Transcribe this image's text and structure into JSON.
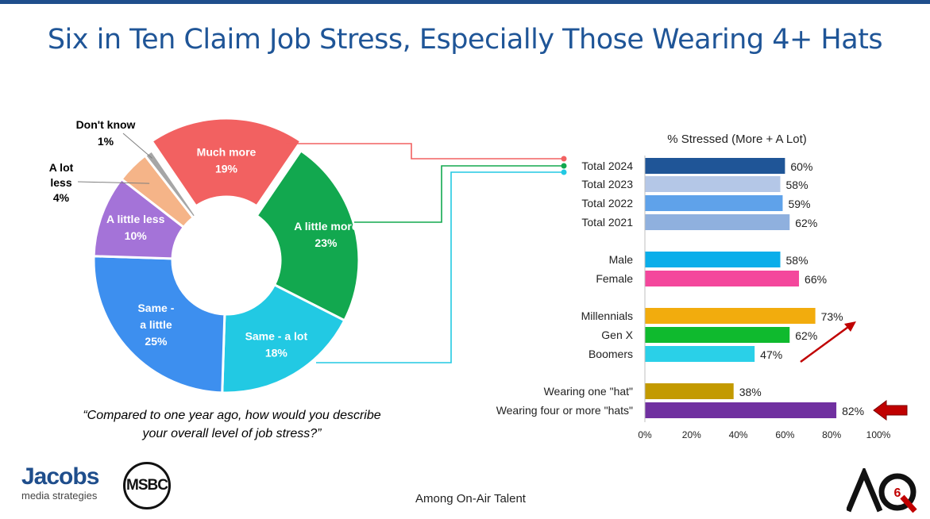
{
  "title": "Six in Ten Claim Job Stress, Especially Those Wearing 4+ Hats",
  "question": "“Compared to one year ago, how would you describe your overall level of job stress?”",
  "base_note": "Among On-Air Talent",
  "logos": {
    "jacobs_name": "Jacobs",
    "jacobs_sub": "media strategies",
    "msbc": "MSBC",
    "aq": "AQ",
    "aq_sub": "6"
  },
  "chart_data": [
    {
      "type": "pie",
      "style": "donut",
      "slices": [
        {
          "label": "Much more",
          "value": 19,
          "color": "#f26161"
        },
        {
          "label": "A little more",
          "value": 23,
          "color": "#12a84f"
        },
        {
          "label": "Same - a lot",
          "value": 18,
          "color": "#22c9e3"
        },
        {
          "label": "Same - a little",
          "value": 25,
          "color": "#3d8fef"
        },
        {
          "label": "A little less",
          "value": 10,
          "color": "#a473d8"
        },
        {
          "label": "A lot less",
          "value": 4,
          "color": "#f5b488"
        },
        {
          "label": "Don't know",
          "value": 1,
          "color": "#a6a6a6"
        }
      ],
      "labels_shown": {
        "much_more": [
          "Much more",
          "19%"
        ],
        "a_little_more": [
          "A little more",
          "23%"
        ],
        "same_a_lot": [
          "Same - a lot",
          "18%"
        ],
        "same_a_little": [
          "Same -",
          "a little",
          "25%"
        ],
        "a_little_less": [
          "A little less",
          "10%"
        ],
        "a_lot_less": [
          "A lot",
          "less",
          "4%"
        ],
        "dont_know": [
          "Don't know",
          "1%"
        ]
      }
    },
    {
      "type": "bar",
      "orientation": "horizontal",
      "title": "% Stressed (More + A Lot)",
      "xlim": [
        0,
        100
      ],
      "xticks": [
        "0%",
        "20%",
        "40%",
        "60%",
        "80%",
        "100%"
      ],
      "groups": [
        [
          {
            "label": "Total 2024",
            "value": 60,
            "display": "60%",
            "color": "#1f5597"
          },
          {
            "label": "Total 2023",
            "value": 58,
            "display": "58%",
            "color": "#b4c7e7"
          },
          {
            "label": "Total 2022",
            "value": 59,
            "display": "59%",
            "color": "#5fa2ea"
          },
          {
            "label": "Total 2021",
            "value": 62,
            "display": "62%",
            "color": "#8fb0de"
          }
        ],
        [
          {
            "label": "Male",
            "value": 58,
            "display": "58%",
            "color": "#0aaeea"
          },
          {
            "label": "Female",
            "value": 66,
            "display": "66%",
            "color": "#f4479c"
          }
        ],
        [
          {
            "label": "Millennials",
            "value": 73,
            "display": "73%",
            "color": "#f2ac0d"
          },
          {
            "label": "Gen X",
            "value": 62,
            "display": "62%",
            "color": "#0fba2e"
          },
          {
            "label": "Boomers",
            "value": 47,
            "display": "47%",
            "color": "#2ad0e8"
          }
        ],
        [
          {
            "label": "Wearing one \"hat\"",
            "value": 38,
            "display": "38%",
            "color": "#c39a00"
          },
          {
            "label": "Wearing four or more \"hats\"",
            "value": 82,
            "display": "82%",
            "color": "#7030a0"
          }
        ]
      ]
    }
  ]
}
